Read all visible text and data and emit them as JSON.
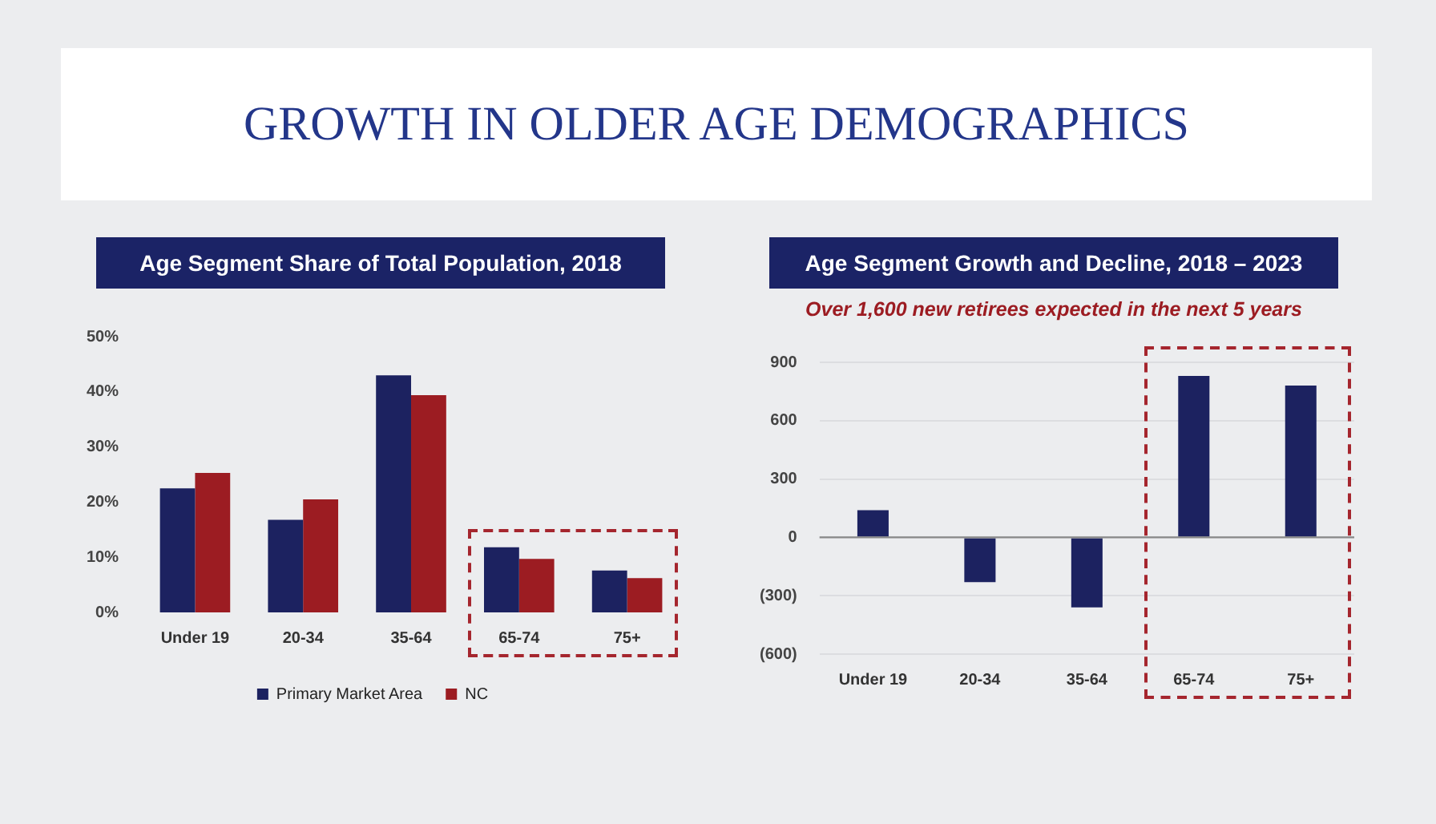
{
  "chart_data": [
    {
      "type": "bar",
      "title": "Age Segment Share of Total Population, 2018",
      "annotations": [
        "GROWTH IN OLDER AGE DEMOGRAPHICS"
      ],
      "categories": [
        "Under 19",
        "20-34",
        "35-64",
        "65-74",
        "75+"
      ],
      "series": [
        {
          "name": "Primary Market Area",
          "color": "#1c2260",
          "values": [
            22.5,
            16.8,
            43,
            11.8,
            7.6
          ]
        },
        {
          "name": "NC",
          "color": "#9c1c22",
          "values": [
            25.3,
            20.5,
            39.4,
            9.7,
            6.2
          ]
        }
      ],
      "ylim": [
        0,
        50
      ],
      "yticks": [
        {
          "value": 0,
          "label": "0%"
        },
        {
          "value": 10,
          "label": "10%"
        },
        {
          "value": 20,
          "label": "20%"
        },
        {
          "value": 30,
          "label": "30%"
        },
        {
          "value": 40,
          "label": "40%"
        },
        {
          "value": 50,
          "label": "50%"
        }
      ],
      "legend": "bottom",
      "grid": false
    },
    {
      "type": "bar",
      "title": "Age Segment Growth and Decline, 2018 – 2023",
      "subtitle": "Over 1,600 new retirees expected in the next 5 years",
      "categories": [
        "Under 19",
        "20-34",
        "35-64",
        "65-74",
        "75+"
      ],
      "series": [
        {
          "color": "#1c2260",
          "values": [
            140,
            -230,
            -360,
            830,
            780
          ]
        }
      ],
      "ylim": [
        -600,
        900
      ],
      "yticks": [
        {
          "value": -600,
          "label": "(600)"
        },
        {
          "value": -300,
          "label": "(300)"
        },
        0,
        300,
        600,
        900
      ],
      "grid": "y"
    }
  ]
}
